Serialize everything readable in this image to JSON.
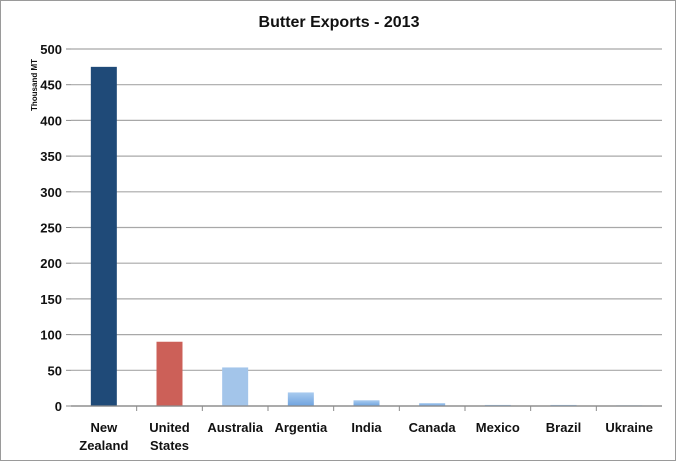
{
  "chart_data": {
    "type": "bar",
    "title": "Butter Exports - 2013",
    "ylabel": "Thousand MT",
    "xlabel": "",
    "ylim": [
      0,
      500
    ],
    "yticks": [
      0,
      50,
      100,
      150,
      200,
      250,
      300,
      350,
      400,
      450,
      500
    ],
    "grid": true,
    "categories": [
      [
        "New",
        "Zealand"
      ],
      [
        "United",
        "States"
      ],
      [
        "Australia"
      ],
      [
        "Argentia"
      ],
      [
        "India"
      ],
      [
        "Canada"
      ],
      [
        "Mexico"
      ],
      [
        "Brazil"
      ],
      [
        "Ukraine"
      ]
    ],
    "values": [
      475,
      90,
      54,
      19,
      8,
      4,
      1.5,
      1.5,
      1
    ],
    "colors": [
      "#1f4a78",
      "#cc6058",
      "#a3c5ea",
      "#8bb6e6",
      "#8bb6e6",
      "#8bb6e6",
      "#8bb6e6",
      "#8bb6e6",
      "#8bb6e6"
    ]
  }
}
